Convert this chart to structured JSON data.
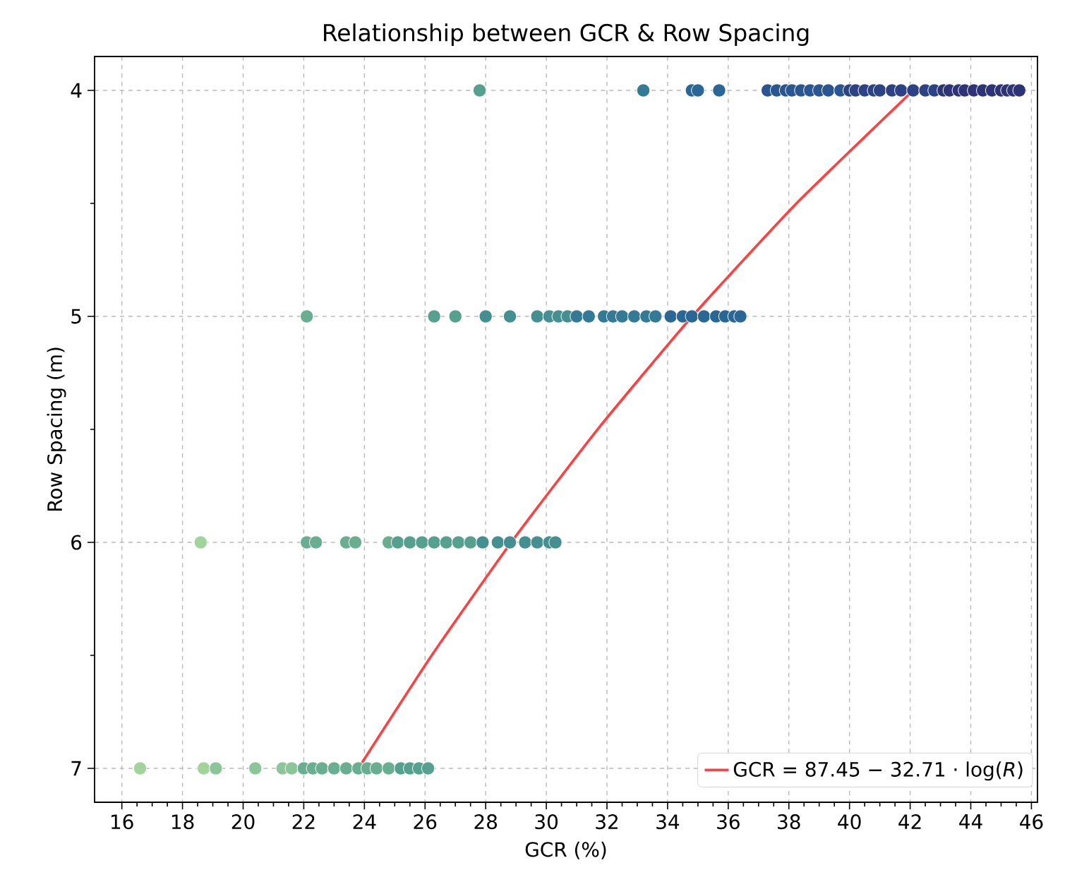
{
  "chart_data": {
    "type": "scatter",
    "title": "Relationship between GCR & Row Spacing",
    "xlabel": "GCR (%)",
    "ylabel": "Row Spacing (m)",
    "xlim": [
      15.1,
      46.2
    ],
    "ylim": [
      7.15,
      3.85
    ],
    "xticks": [
      16,
      18,
      20,
      22,
      24,
      26,
      28,
      30,
      32,
      34,
      36,
      38,
      40,
      42,
      44,
      46
    ],
    "yticks": [
      4,
      5,
      6,
      7
    ],
    "grid": true,
    "legend": "bottom right",
    "series": [
      {
        "marker": "circle",
        "x": [
          27.8,
          33.2,
          34.8,
          35.0,
          35.7,
          37.3,
          37.6,
          37.9,
          38.1,
          38.4,
          38.7,
          39.0,
          39.3,
          39.7,
          40.0,
          40.2,
          40.5,
          40.8,
          41.0,
          41.4,
          41.7,
          42.1,
          42.5,
          42.8,
          43.1,
          43.3,
          43.6,
          43.8,
          44.1,
          44.4,
          44.7,
          45.0,
          45.2,
          45.4,
          45.6,
          22.1,
          26.3,
          27.0,
          28.0,
          28.8,
          29.7,
          30.1,
          30.4,
          30.7,
          31.0,
          31.4,
          31.9,
          32.2,
          32.5,
          32.9,
          33.3,
          33.6,
          34.1,
          34.5,
          34.8,
          35.2,
          35.6,
          35.9,
          36.2,
          36.4,
          18.6,
          22.1,
          22.4,
          23.4,
          23.7,
          24.8,
          25.1,
          25.5,
          25.9,
          26.3,
          26.7,
          27.1,
          27.5,
          27.9,
          28.4,
          28.8,
          29.3,
          29.7,
          30.1,
          30.3,
          16.6,
          18.7,
          19.1,
          20.4,
          21.3,
          21.6,
          22.0,
          22.3,
          22.6,
          23.0,
          23.4,
          23.8,
          24.1,
          24.4,
          24.8,
          25.2,
          25.5,
          25.8,
          26.1
        ],
        "values": [
          4,
          4,
          4,
          4,
          4,
          4,
          4,
          4,
          4,
          4,
          4,
          4,
          4,
          4,
          4,
          4,
          4,
          4,
          4,
          4,
          4,
          4,
          4,
          4,
          4,
          4,
          4,
          4,
          4,
          4,
          4,
          4,
          4,
          4,
          4,
          5,
          5,
          5,
          5,
          5,
          5,
          5,
          5,
          5,
          5,
          5,
          5,
          5,
          5,
          5,
          5,
          5,
          5,
          5,
          5,
          5,
          5,
          5,
          5,
          5,
          6,
          6,
          6,
          6,
          6,
          6,
          6,
          6,
          6,
          6,
          6,
          6,
          6,
          6,
          6,
          6,
          6,
          6,
          6,
          6,
          7,
          7,
          7,
          7,
          7,
          7,
          7,
          7,
          7,
          7,
          7,
          7,
          7,
          7,
          7,
          7,
          7,
          7,
          7
        ],
        "colors": [
          "#55a08f",
          "#357a94",
          "#2b6795",
          "#2b6795",
          "#2b6795",
          "#2a5590",
          "#2a5590",
          "#2a5590",
          "#2a5590",
          "#2a5590",
          "#2a5590",
          "#2a5590",
          "#2a5590",
          "#2a5590",
          "#2c4282",
          "#2c4282",
          "#2c4282",
          "#2c4282",
          "#2c4282",
          "#2c4282",
          "#2c4282",
          "#2c4282",
          "#2c4282",
          "#2c4282",
          "#2d3475",
          "#2d3475",
          "#2d3475",
          "#2d3475",
          "#2d3475",
          "#2d3475",
          "#2d3475",
          "#2d3475",
          "#2d3475",
          "#2d3475",
          "#2d3475",
          "#6aae92",
          "#55a08f",
          "#55a08f",
          "#458f91",
          "#458f91",
          "#458f91",
          "#458f91",
          "#458f91",
          "#458f91",
          "#357a94",
          "#357a94",
          "#357a94",
          "#357a94",
          "#357a94",
          "#357a94",
          "#357a94",
          "#357a94",
          "#2b6795",
          "#2b6795",
          "#2b6795",
          "#2b6795",
          "#2b6795",
          "#2b6795",
          "#2b6795",
          "#2b6795",
          "#a3d39c",
          "#6aae92",
          "#6aae92",
          "#6aae92",
          "#6aae92",
          "#6aae92",
          "#55a08f",
          "#55a08f",
          "#55a08f",
          "#55a08f",
          "#55a08f",
          "#55a08f",
          "#55a08f",
          "#458f91",
          "#458f91",
          "#458f91",
          "#458f91",
          "#458f91",
          "#458f91",
          "#458f91",
          "#a3d39c",
          "#a3d39c",
          "#8cc59a",
          "#8cc59a",
          "#8cc59a",
          "#8cc59a",
          "#6aae92",
          "#6aae92",
          "#6aae92",
          "#6aae92",
          "#6aae92",
          "#6aae92",
          "#6aae92",
          "#6aae92",
          "#6aae92",
          "#55a08f",
          "#55a08f",
          "#55a08f",
          "#55a08f"
        ]
      },
      {
        "type": "line",
        "name": "GCR = 87.45 − 32.71 · log(*R*)",
        "color": "#ff4040",
        "line_style": "solid",
        "x": [
          42.1,
          38.25,
          34.81,
          31.69,
          28.84,
          26.22,
          23.8
        ],
        "values": [
          4,
          4.5,
          5,
          5.5,
          6,
          6.5,
          7
        ]
      }
    ]
  }
}
